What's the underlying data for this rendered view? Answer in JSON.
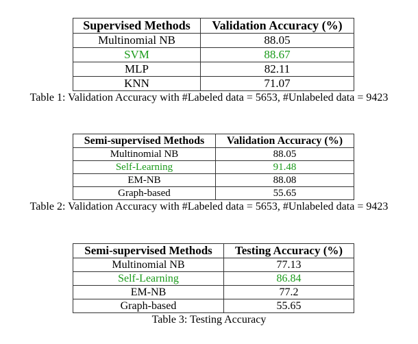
{
  "tables": [
    {
      "headers": [
        "Supervised Methods",
        "Validation Accuracy (%)"
      ],
      "rows": [
        {
          "method": "Multinomial NB",
          "value": "88.05",
          "highlight": false
        },
        {
          "method": "SVM",
          "value": "88.67",
          "highlight": true
        },
        {
          "method": "MLP",
          "value": "82.11",
          "highlight": false
        },
        {
          "method": "KNN",
          "value": "71.07",
          "highlight": false
        }
      ],
      "caption": "Table 1: Validation Accuracy with #Labeled data = 5653, #Unlabeled data = 9423"
    },
    {
      "headers": [
        "Semi-supervised Methods",
        "Validation Accuracy (%)"
      ],
      "rows": [
        {
          "method": "Multinomial NB",
          "value": "88.05",
          "highlight": false
        },
        {
          "method": "Self-Learning",
          "value": "91.48",
          "highlight": true
        },
        {
          "method": "EM-NB",
          "value": "88.08",
          "highlight": false
        },
        {
          "method": "Graph-based",
          "value": "55.65",
          "highlight": false
        }
      ],
      "caption": "Table 2: Validation Accuracy with #Labeled data = 5653, #Unlabeled data = 9423"
    },
    {
      "headers": [
        "Semi-supervised Methods",
        "Testing Accuracy (%)"
      ],
      "rows": [
        {
          "method": "Multinomial NB",
          "value": "77.13",
          "highlight": false
        },
        {
          "method": "Self-Learning",
          "value": "86.84",
          "highlight": true
        },
        {
          "method": "EM-NB",
          "value": "77.2",
          "highlight": false
        },
        {
          "method": "Graph-based",
          "value": "55.65",
          "highlight": false
        }
      ],
      "caption": "Table 3: Testing Accuracy"
    }
  ],
  "colors": {
    "highlight": "#1a9a1a",
    "text": "#000000",
    "border": "#333333"
  }
}
